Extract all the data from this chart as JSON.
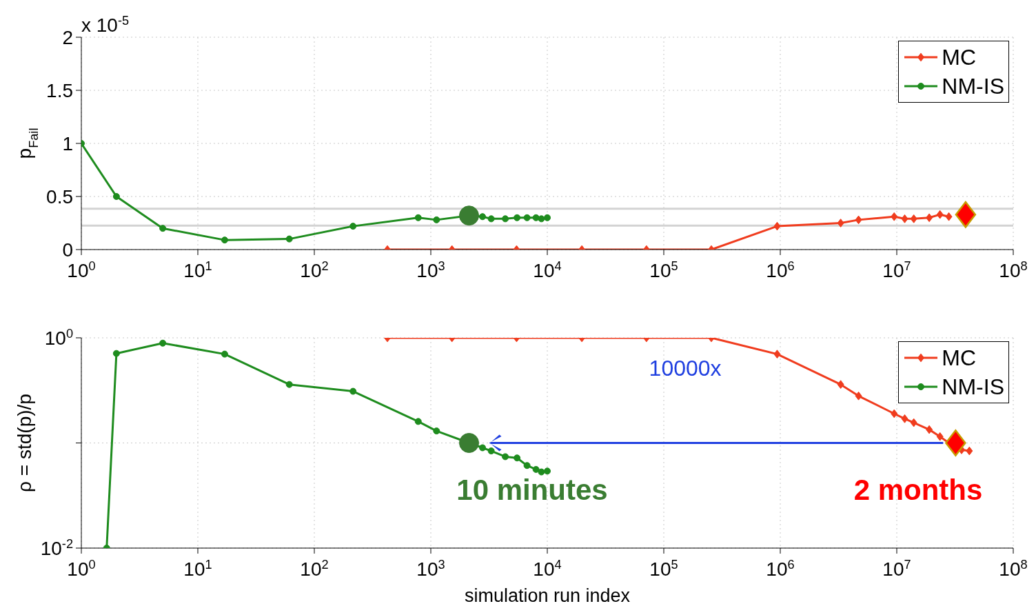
{
  "chart_data": [
    {
      "type": "line",
      "ylabel": "p$_{Fail}$",
      "log": "x",
      "grid": true,
      "legend": "top right",
      "xlim": [
        1,
        100000000
      ],
      "ylim": [
        0,
        2
      ],
      "xticks": [
        {
          "value": 1,
          "label": "10$^{0}$"
        },
        {
          "value": 10,
          "label": "10$^{1}$"
        },
        {
          "value": 100,
          "label": "10$^{2}$"
        },
        {
          "value": 1000,
          "label": "10$^{3}$"
        },
        {
          "value": 10000,
          "label": "10$^{4}$"
        },
        {
          "value": 100000,
          "label": "10$^{5}$"
        },
        {
          "value": 1000000,
          "label": "10$^{6}$"
        },
        {
          "value": 10000000,
          "label": "10$^{7}$"
        },
        {
          "value": 100000000,
          "label": "10$^{8}$"
        }
      ],
      "yticks": [
        0,
        0.5,
        1,
        1.5,
        2
      ],
      "annotations": [
        "x 10$^{-5}$"
      ],
      "ref_lines": [
        {
          "axis": "y",
          "value": 0.385,
          "color": "#d3d3d3"
        },
        {
          "axis": "y",
          "value": 0.226,
          "color": "#d3d3d3"
        }
      ],
      "series": [
        {
          "name": "MC",
          "color": "#f03c1e",
          "marker": "diamond",
          "x": [
            424,
            1520,
            5450,
            19800,
            71000,
            256000,
            940000,
            3300000,
            4700000,
            9500000,
            11700000,
            14000000,
            19000000,
            23500000,
            28000000
          ],
          "values": [
            0,
            0,
            0,
            0,
            0,
            0,
            0.22,
            0.25,
            0.28,
            0.31,
            0.29,
            0.29,
            0.3,
            0.33,
            0.31
          ]
        },
        {
          "name": "NM-IS",
          "color": "#1e8c1e",
          "marker": "circle",
          "x": [
            1,
            2,
            5,
            17,
            61,
            215,
            780,
            1120,
            2130,
            2780,
            3300,
            4360,
            5500,
            6700,
            8000,
            8900,
            10000
          ],
          "values": [
            1,
            0.5,
            0.2,
            0.09,
            0.1,
            0.22,
            0.3,
            0.28,
            0.32,
            0.31,
            0.29,
            0.29,
            0.3,
            0.3,
            0.3,
            0.29,
            0.3
          ]
        },
        {
          "type": "scatter",
          "color": "#3a7d32",
          "marker": "circle",
          "x": [
            2130
          ],
          "values": [
            0.32
          ]
        },
        {
          "type": "scatter",
          "color": "#ff0000",
          "marker": "diamond",
          "x": [
            39000000
          ],
          "values": [
            0.33
          ]
        }
      ]
    },
    {
      "type": "line",
      "ylabel": "ρ = std(p)/p",
      "xlabel": "simulation run index",
      "log": "xy",
      "grid": true,
      "legend": "top right",
      "xlim": [
        1,
        100000000
      ],
      "ylim": [
        0.01,
        1
      ],
      "xticks": [
        {
          "value": 1,
          "label": "10$^{0}$"
        },
        {
          "value": 10,
          "label": "10$^{1}$"
        },
        {
          "value": 100,
          "label": "10$^{2}$"
        },
        {
          "value": 1000,
          "label": "10$^{3}$"
        },
        {
          "value": 10000,
          "label": "10$^{4}$"
        },
        {
          "value": 100000,
          "label": "10$^{5}$"
        },
        {
          "value": 1000000,
          "label": "10$^{6}$"
        },
        {
          "value": 10000000,
          "label": "10$^{7}$"
        },
        {
          "value": 100000000,
          "label": "10$^{8}$"
        }
      ],
      "yticks": [
        {
          "value": 0.01,
          "label": "10$^{-2}$"
        },
        {
          "value": 0.1,
          "label": null
        },
        {
          "value": 1,
          "label": "10$^{0}$"
        }
      ],
      "annotations": [
        "10000x",
        "10 minutes",
        "2 months"
      ],
      "series": [
        {
          "name": "MC",
          "color": "#f03c1e",
          "marker": "diamond",
          "x": [
            424,
            1520,
            5450,
            19800,
            71000,
            256000,
            940000,
            3300000,
            4700000,
            9500000,
            11700000,
            14000000,
            19000000,
            23500000,
            28000000,
            32000000,
            36000000,
            42000000
          ],
          "values": [
            1,
            1,
            1,
            1,
            1,
            1,
            0.7,
            0.36,
            0.28,
            0.19,
            0.17,
            0.156,
            0.134,
            0.115,
            0.1,
            0.1,
            0.086,
            0.084
          ]
        },
        {
          "name": "NM-IS",
          "color": "#1e8c1e",
          "marker": "circle",
          "x": [
            1.65,
            2,
            5,
            17,
            61,
            215,
            780,
            1120,
            2130,
            2780,
            3300,
            4360,
            5500,
            6700,
            8000,
            8900,
            10000
          ],
          "values": [
            0.01,
            0.71,
            0.89,
            0.7,
            0.36,
            0.31,
            0.16,
            0.13,
            0.1,
            0.09,
            0.084,
            0.074,
            0.072,
            0.061,
            0.056,
            0.053,
            0.054
          ]
        },
        {
          "type": "scatter",
          "color": "#3a7d32",
          "marker": "circle",
          "x": [
            2130
          ],
          "values": [
            0.1
          ]
        },
        {
          "type": "scatter",
          "color": "#ff0000",
          "marker": "diamond",
          "x": [
            32000000
          ],
          "values": [
            0.1
          ]
        }
      ]
    }
  ]
}
